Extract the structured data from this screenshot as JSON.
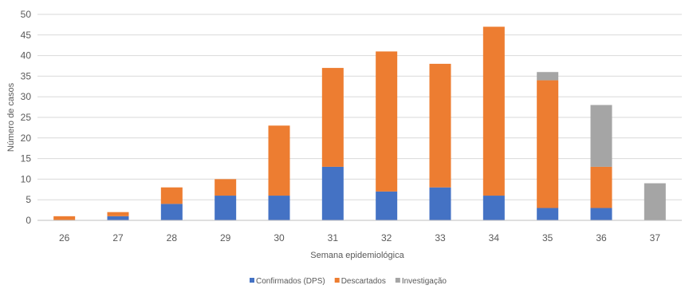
{
  "chart_data": {
    "type": "bar",
    "stacked": true,
    "categories": [
      "26",
      "27",
      "28",
      "29",
      "30",
      "31",
      "32",
      "33",
      "34",
      "35",
      "36",
      "37"
    ],
    "series": [
      {
        "name": "Confirmados (DPS)",
        "color": "#4472C4",
        "values": [
          0,
          1,
          4,
          6,
          6,
          13,
          7,
          8,
          6,
          3,
          3,
          0
        ]
      },
      {
        "name": "Descartados",
        "color": "#ED7D31",
        "values": [
          1,
          1,
          4,
          4,
          17,
          24,
          34,
          30,
          41,
          31,
          10,
          0
        ]
      },
      {
        "name": "Investigação",
        "color": "#A5A5A5",
        "values": [
          0,
          0,
          0,
          0,
          0,
          0,
          0,
          0,
          0,
          2,
          15,
          9
        ]
      }
    ],
    "xlabel": "Semana epidemiológica",
    "ylabel": "Número de casos",
    "ylim": [
      0,
      50
    ],
    "yticks": [
      0,
      5,
      10,
      15,
      20,
      25,
      30,
      35,
      40,
      45,
      50
    ],
    "grid": true,
    "legend_position": "bottom"
  }
}
